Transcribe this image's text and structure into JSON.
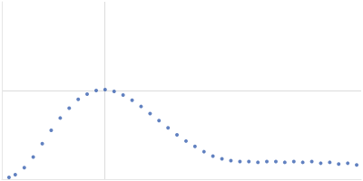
{
  "chart_data": {
    "type": "scatter",
    "color": "#3a62b0",
    "marker": "circle",
    "x": [
      0.007,
      0.0131,
      0.0219,
      0.0306,
      0.0394,
      0.0481,
      0.0569,
      0.0656,
      0.0744,
      0.0831,
      0.0919,
      0.1006,
      0.1094,
      0.1181,
      0.1269,
      0.1356,
      0.1444,
      0.1531,
      0.1619,
      0.1706,
      0.1794,
      0.1881,
      0.1969,
      0.2056,
      0.2144,
      0.2231,
      0.2319,
      0.2406,
      0.2494,
      0.2581,
      0.2669,
      0.2756,
      0.2844,
      0.2931,
      0.3019,
      0.3106,
      0.3194,
      0.3281,
      0.3369,
      0.3456
    ],
    "values": [
      0.02,
      0.05,
      0.13,
      0.25,
      0.4,
      0.55,
      0.69,
      0.8,
      0.9,
      0.96,
      1.0,
      1.01,
      0.99,
      0.95,
      0.89,
      0.82,
      0.74,
      0.66,
      0.58,
      0.5,
      0.43,
      0.37,
      0.31,
      0.26,
      0.23,
      0.21,
      0.2,
      0.2,
      0.19,
      0.2,
      0.2,
      0.19,
      0.2,
      0.19,
      0.2,
      0.18,
      0.19,
      0.17,
      0.18,
      0.16
    ],
    "xlim": [
      0,
      0.35
    ],
    "xticks": [
      0.1
    ],
    "ylim": [
      0,
      2
    ],
    "yticks": [
      1
    ],
    "grid": true,
    "tick_labels": false
  }
}
